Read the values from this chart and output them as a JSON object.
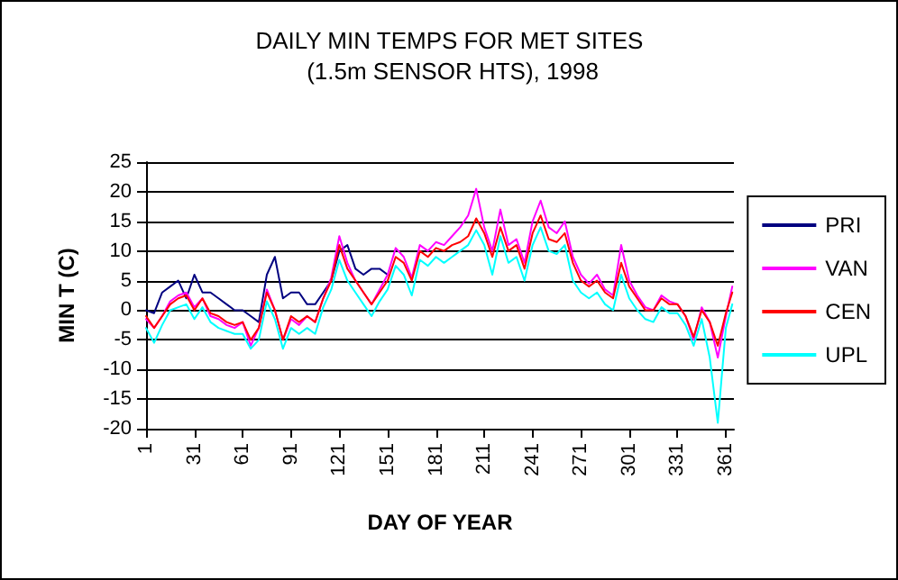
{
  "chart_data": {
    "type": "line",
    "title": "DAILY MIN TEMPS FOR MET SITES (1.5m SENSOR HTS), 1998",
    "xlabel": "DAY OF YEAR",
    "ylabel": "MIN T (C)",
    "x": [
      1,
      6,
      11,
      16,
      21,
      26,
      31,
      36,
      41,
      46,
      51,
      56,
      61,
      66,
      71,
      76,
      81,
      86,
      91,
      96,
      101,
      106,
      111,
      116,
      121,
      126,
      131,
      136,
      141,
      146,
      151,
      156,
      161,
      166,
      171,
      176,
      181,
      186,
      191,
      196,
      201,
      206,
      211,
      216,
      221,
      226,
      231,
      236,
      241,
      246,
      251,
      256,
      261,
      266,
      271,
      276,
      281,
      286,
      291,
      296,
      301,
      306,
      311,
      316,
      321,
      326,
      331,
      336,
      341,
      346,
      351,
      356,
      361,
      365
    ],
    "series": [
      {
        "name": "PRI",
        "color": "#000080",
        "x": [
          1,
          6,
          11,
          16,
          21,
          26,
          31,
          36,
          41,
          46,
          51,
          56,
          61,
          66,
          71,
          76,
          81,
          86,
          91,
          96,
          101,
          106,
          111,
          116,
          121,
          126,
          131,
          136,
          141,
          146,
          151
        ],
        "values": [
          0,
          -0.5,
          3,
          4,
          5,
          2,
          6,
          3,
          3,
          2,
          1,
          0,
          0,
          -1,
          -2,
          6,
          9,
          2,
          3,
          3,
          1,
          1,
          3,
          5,
          10,
          11,
          7,
          6,
          7,
          7,
          6
        ]
      },
      {
        "name": "VAN",
        "color": "#ff00ff",
        "values": [
          -1.5,
          -3,
          -1,
          1.5,
          2.5,
          3,
          0.5,
          2,
          -1,
          -1.5,
          -2.5,
          -3,
          -2,
          -6,
          -3,
          3.5,
          0,
          -5,
          -1.5,
          -2.5,
          -1,
          -2,
          2,
          5.5,
          12.5,
          8,
          5,
          3,
          1,
          3.5,
          6,
          10.5,
          9,
          5.5,
          11,
          10,
          11.5,
          11,
          12.5,
          14,
          16,
          20.5,
          14,
          10,
          17,
          11,
          12,
          8,
          15,
          18.5,
          14,
          13,
          15,
          9,
          6,
          4.5,
          6,
          3.5,
          2.5,
          11,
          5,
          2.5,
          0.5,
          0,
          2.5,
          1.5,
          1,
          -1,
          -5,
          0.5,
          -2,
          -8,
          -1,
          4
        ]
      },
      {
        "name": "CEN",
        "color": "#ff0000",
        "values": [
          -1,
          -3,
          -1,
          1,
          2,
          2.5,
          0,
          2,
          -0.5,
          -1,
          -2,
          -2.5,
          -2,
          -5,
          -3,
          3,
          0,
          -5,
          -1,
          -2,
          -1,
          -2,
          2,
          5,
          11,
          7,
          5,
          3,
          1,
          3,
          5,
          9,
          8,
          5,
          10,
          9,
          10.5,
          10,
          11,
          11.5,
          12.5,
          15.5,
          13,
          9,
          14,
          10,
          11,
          7,
          13,
          16,
          12,
          11.5,
          13,
          8,
          5,
          4,
          5,
          3,
          2,
          8,
          4,
          2,
          0,
          0,
          2,
          1,
          1,
          -1,
          -4.5,
          0,
          -2,
          -6,
          -0.5,
          3
        ]
      },
      {
        "name": "UPL",
        "color": "#00ffff",
        "values": [
          -3,
          -5.5,
          -2.5,
          0,
          0.5,
          1,
          -1.5,
          0.5,
          -2,
          -3,
          -3.5,
          -4,
          -4,
          -6.5,
          -5,
          1.5,
          -1.5,
          -6.5,
          -3,
          -4,
          -3,
          -4,
          0.5,
          3.5,
          8.5,
          5,
          3,
          1,
          -1,
          1.5,
          3.5,
          7.5,
          6,
          2.5,
          8.5,
          7.5,
          9,
          8,
          9,
          10,
          11,
          13.5,
          11,
          6,
          12.5,
          8,
          9,
          5,
          11,
          14,
          10,
          9.5,
          11,
          5,
          3,
          2,
          3,
          1,
          0,
          6,
          2,
          0,
          -1.5,
          -2,
          0.5,
          -0.5,
          -0.5,
          -2.5,
          -6,
          -1.5,
          -8,
          -19,
          -3,
          1
        ]
      }
    ],
    "xlim": [
      1,
      366
    ],
    "xticks": [
      1,
      31,
      61,
      91,
      121,
      151,
      181,
      211,
      241,
      271,
      301,
      331,
      361
    ],
    "ylim": [
      -20,
      25
    ],
    "yticks": [
      -20,
      -15,
      -10,
      -5,
      0,
      5,
      10,
      15,
      20,
      25
    ],
    "grid": "y",
    "legend": "right",
    "marker": "none",
    "line_style": "solid"
  }
}
